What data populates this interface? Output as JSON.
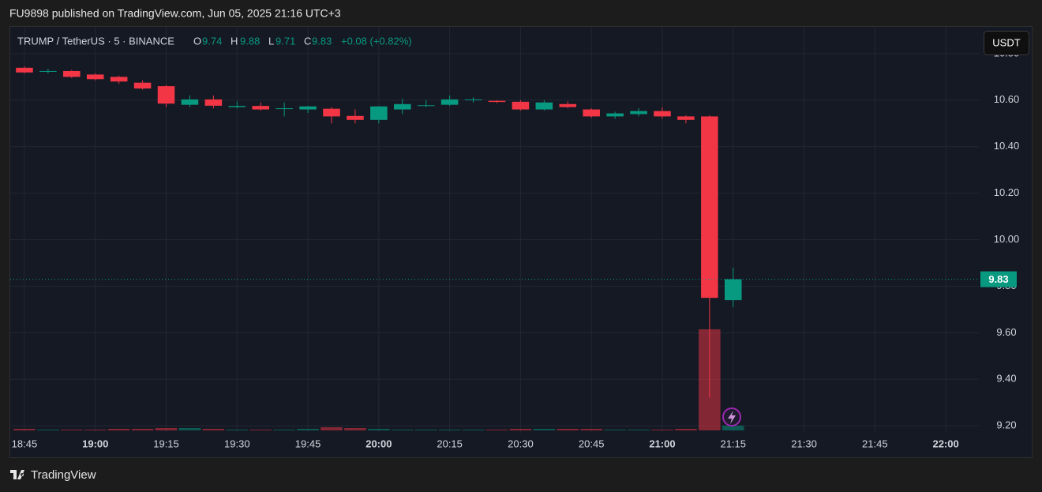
{
  "header": {
    "text": "FU9898 published on TradingView.com, Jun 05, 2025 21:16 UTC+3"
  },
  "chart_data": {
    "type": "candlestick",
    "symbol": "TRUMP / TetherUS · 5 · BINANCE",
    "legend": {
      "o_label": "O",
      "open": 9.74,
      "h_label": "H",
      "high": 9.88,
      "l_label": "L",
      "low": 9.71,
      "c_label": "C",
      "close": 9.83,
      "change": "+0.08 (+0.82%)"
    },
    "currency": "USDT",
    "x": [
      "18:45",
      "18:50",
      "18:55",
      "19:00",
      "19:05",
      "19:10",
      "19:15",
      "19:20",
      "19:25",
      "19:30",
      "19:35",
      "19:40",
      "19:45",
      "19:50",
      "19:55",
      "20:00",
      "20:05",
      "20:10",
      "20:15",
      "20:20",
      "20:25",
      "20:30",
      "20:35",
      "20:40",
      "20:45",
      "20:50",
      "20:55",
      "21:00",
      "21:05",
      "21:10",
      "21:15"
    ],
    "open": [
      10.739,
      10.722,
      10.725,
      10.71,
      10.7,
      10.675,
      10.66,
      10.58,
      10.603,
      10.57,
      10.575,
      10.562,
      10.56,
      10.563,
      10.532,
      10.515,
      10.56,
      10.575,
      10.58,
      10.6,
      10.597,
      10.593,
      10.56,
      10.583,
      10.56,
      10.53,
      10.54,
      10.553,
      10.53,
      10.53,
      9.74
    ],
    "high": [
      10.745,
      10.735,
      10.73,
      10.715,
      10.705,
      10.685,
      10.665,
      10.62,
      10.62,
      10.595,
      10.59,
      10.59,
      10.575,
      10.57,
      10.56,
      10.575,
      10.605,
      10.6,
      10.62,
      10.612,
      10.6,
      10.6,
      10.6,
      10.595,
      10.565,
      10.55,
      10.565,
      10.57,
      10.535,
      10.535,
      9.88
    ],
    "low": [
      10.715,
      10.715,
      10.695,
      10.685,
      10.67,
      10.645,
      10.57,
      10.57,
      10.565,
      10.565,
      10.555,
      10.53,
      10.545,
      10.5,
      10.5,
      10.5,
      10.54,
      10.57,
      10.575,
      10.59,
      10.588,
      10.555,
      10.555,
      10.565,
      10.525,
      10.52,
      10.53,
      10.52,
      10.5,
      9.322,
      9.71
    ],
    "close": [
      10.719,
      10.725,
      10.7,
      10.69,
      10.68,
      10.65,
      10.585,
      10.603,
      10.576,
      10.575,
      10.56,
      10.565,
      10.573,
      10.53,
      10.515,
      10.573,
      10.583,
      10.578,
      10.603,
      10.603,
      10.592,
      10.56,
      10.59,
      10.57,
      10.53,
      10.543,
      10.553,
      10.53,
      10.515,
      9.75,
      9.83
    ],
    "volume": [
      2,
      1,
      1,
      1,
      2,
      2,
      3,
      3,
      2,
      1,
      1,
      1,
      2,
      4,
      3,
      2,
      1,
      1,
      1,
      1,
      1,
      2,
      2,
      2,
      2,
      1,
      1,
      1,
      2,
      128,
      6
    ],
    "up_color": "#089981",
    "down_color": "#f23645",
    "last_price": 9.83,
    "ylim": [
      9.17,
      10.915
    ],
    "yticks": [
      {
        "value": 9.2,
        "label": "9.20"
      },
      {
        "value": 9.4,
        "label": "9.40"
      },
      {
        "value": 9.6,
        "label": "9.60"
      },
      {
        "value": 9.8,
        "label": "9.80"
      },
      {
        "value": 10,
        "label": "10.00"
      },
      {
        "value": 10.2,
        "label": "10.20"
      },
      {
        "value": 10.4,
        "label": "10.40"
      },
      {
        "value": 10.6,
        "label": "10.60"
      },
      {
        "value": 10.8,
        "label": "10.80"
      }
    ],
    "xlim": [
      "18:42",
      "22:07"
    ],
    "xticks": [
      "18:45",
      "19:00",
      "19:15",
      "19:30",
      "19:45",
      "20:00",
      "20:15",
      "20:30",
      "20:45",
      "21:00",
      "21:15",
      "21:30",
      "21:45",
      "22:00"
    ],
    "grid": true
  },
  "footer": {
    "logo_text": "TradingView"
  }
}
